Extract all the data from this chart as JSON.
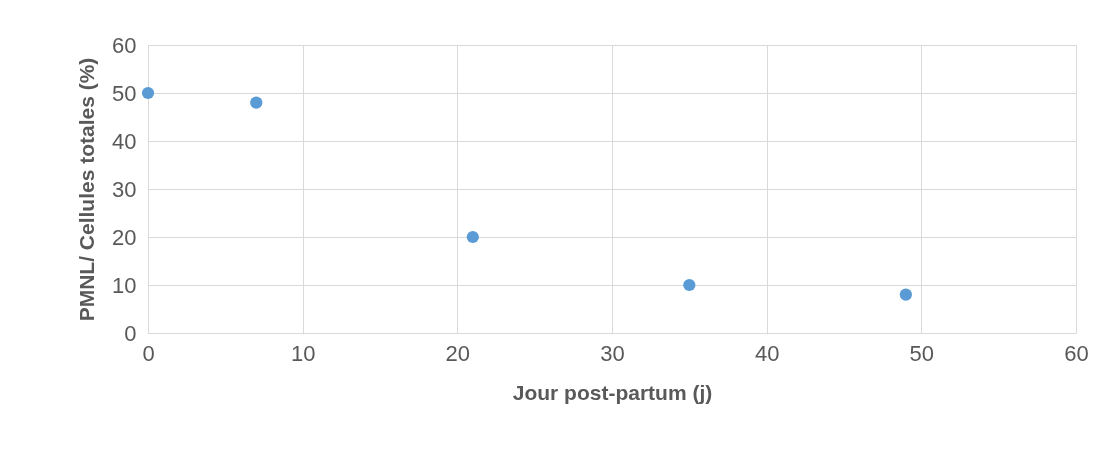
{
  "chart_data": {
    "type": "scatter",
    "xlabel": "Jour post-partum (j)",
    "ylabel": "PMNL/ Cellules totales (%)",
    "x": [
      0,
      7,
      21,
      35,
      49
    ],
    "series": [
      {
        "color": "#5b9bd5",
        "values": [
          50,
          48,
          20,
          10,
          8
        ]
      }
    ],
    "xlim": [
      0,
      60
    ],
    "xticks": [
      0,
      10,
      20,
      30,
      40,
      50,
      60
    ],
    "ylim": [
      0,
      60
    ],
    "yticks": [
      0,
      10,
      20,
      30,
      40,
      50,
      60
    ],
    "grid": true,
    "marker": "circle"
  }
}
